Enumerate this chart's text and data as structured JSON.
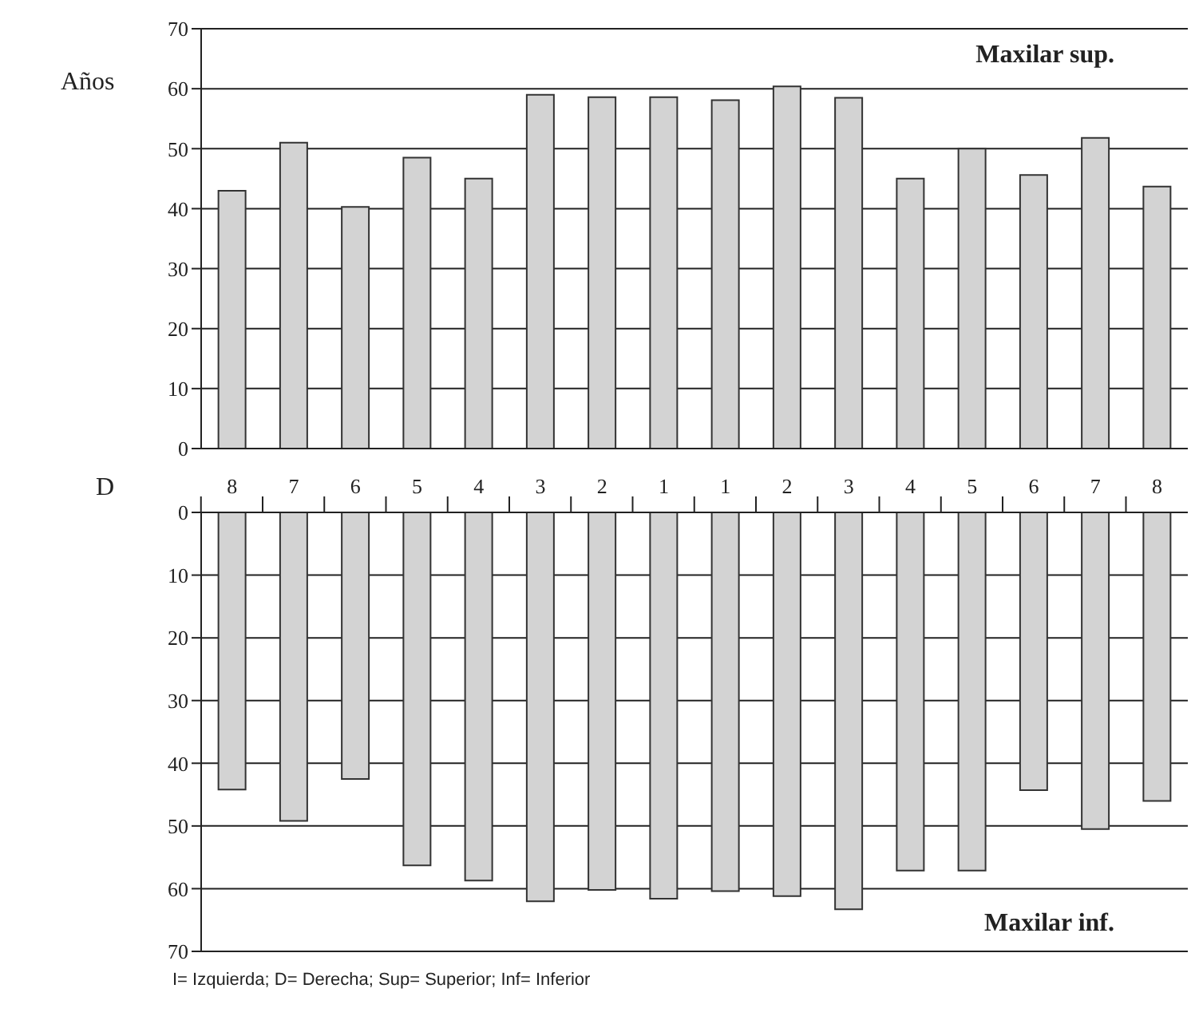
{
  "chart_data": [
    {
      "type": "bar",
      "title": "Maxilar sup.",
      "ylabel": "Años",
      "categories": [
        "8",
        "7",
        "6",
        "5",
        "4",
        "3",
        "2",
        "1",
        "1",
        "2",
        "3",
        "4",
        "5",
        "6",
        "7",
        "8"
      ],
      "values": [
        43,
        51,
        40.3,
        48.5,
        45,
        59,
        58.6,
        58.6,
        58.1,
        60.4,
        58.5,
        45,
        50,
        45.6,
        51.8,
        43.7
      ],
      "color": "#d3d3d3",
      "ylim": [
        0,
        70
      ],
      "yticks": [
        0,
        10,
        20,
        30,
        40,
        50,
        60,
        70
      ],
      "grid": "y",
      "tick_labels": "y"
    },
    {
      "type": "bar",
      "title": "Maxilar inf.",
      "categories": [
        "8",
        "7",
        "6",
        "5",
        "4",
        "3",
        "2",
        "1",
        "1",
        "2",
        "3",
        "4",
        "5",
        "6",
        "7",
        "8"
      ],
      "values": [
        44.2,
        49.2,
        42.5,
        56.3,
        58.7,
        62,
        60.2,
        61.6,
        60.4,
        61.2,
        63.3,
        57.1,
        57.1,
        44.3,
        50.5,
        46
      ],
      "color": "#d3d3d3",
      "ylim": [
        70,
        0
      ],
      "yticks": [
        0,
        10,
        20,
        30,
        40,
        50,
        60,
        70
      ],
      "grid": "y",
      "annotations": [
        "D",
        "I= Izquierda; D= Derecha; Sup= Superior; Inf= Inferior"
      ]
    }
  ]
}
